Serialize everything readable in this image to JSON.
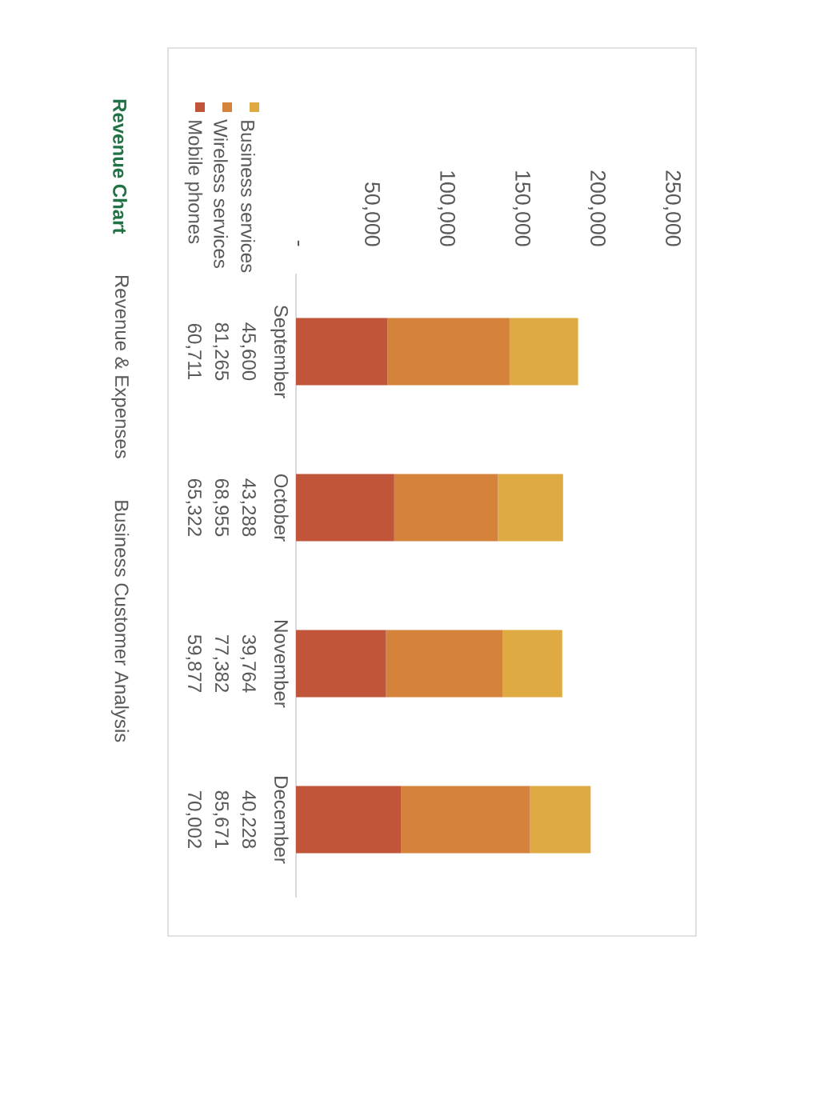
{
  "chart_data": {
    "type": "bar",
    "stacked": true,
    "orientation": "horizontal",
    "categories": [
      "September",
      "October",
      "November",
      "December"
    ],
    "series": [
      {
        "name": "Mobile phones",
        "color": "#c0553a",
        "values": [
          60711,
          65322,
          59877,
          70002
        ],
        "value_labels": [
          "60,711",
          "65,322",
          "59,877",
          "70,002"
        ]
      },
      {
        "name": "Wireless services",
        "color": "#d5823a",
        "values": [
          81265,
          68955,
          77382,
          85671
        ],
        "value_labels": [
          "81,265",
          "68,955",
          "77,382",
          "85,671"
        ]
      },
      {
        "name": "Business services",
        "color": "#dfaa42",
        "values": [
          45600,
          43288,
          39764,
          40228
        ],
        "value_labels": [
          "45,600",
          "43,288",
          "39,764",
          "40,228"
        ]
      }
    ],
    "xlim": [
      0,
      250000
    ],
    "xticks": [
      {
        "value": 0,
        "label": "-"
      },
      {
        "value": 50000,
        "label": "50,000"
      },
      {
        "value": 100000,
        "label": "100,000"
      },
      {
        "value": 150000,
        "label": "150,000"
      },
      {
        "value": 200000,
        "label": "200,000"
      },
      {
        "value": 250000,
        "label": "250,000"
      }
    ],
    "legend": "top left",
    "annotations": [
      "Revenue Chart",
      "Revenue & Expenses",
      "Business Customer Analysis"
    ]
  }
}
